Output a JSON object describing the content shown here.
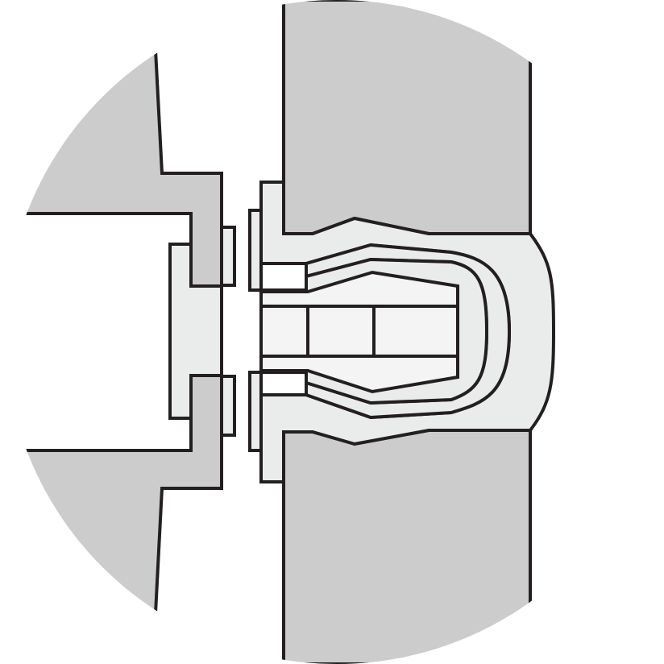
{
  "diagram": {
    "kind": "cross-section detail (circular callout)",
    "text_labels": [],
    "components": [
      "left-panel",
      "right-panel-upper",
      "right-panel-lower",
      "left-spacer-upper",
      "left-spacer-lower",
      "washer-upper",
      "washer-lower",
      "fastener-flange-upper",
      "fastener-flange-lower",
      "fastener-outer-shell",
      "fastener-inner-cap",
      "inner-sleeve",
      "inner-core"
    ]
  },
  "colors": {
    "background": "#ffffff",
    "panel_fill": "#cccccc",
    "part_fill": "#eaecec",
    "inner_fill": "#f4f4f4",
    "outline": "#231f20"
  }
}
